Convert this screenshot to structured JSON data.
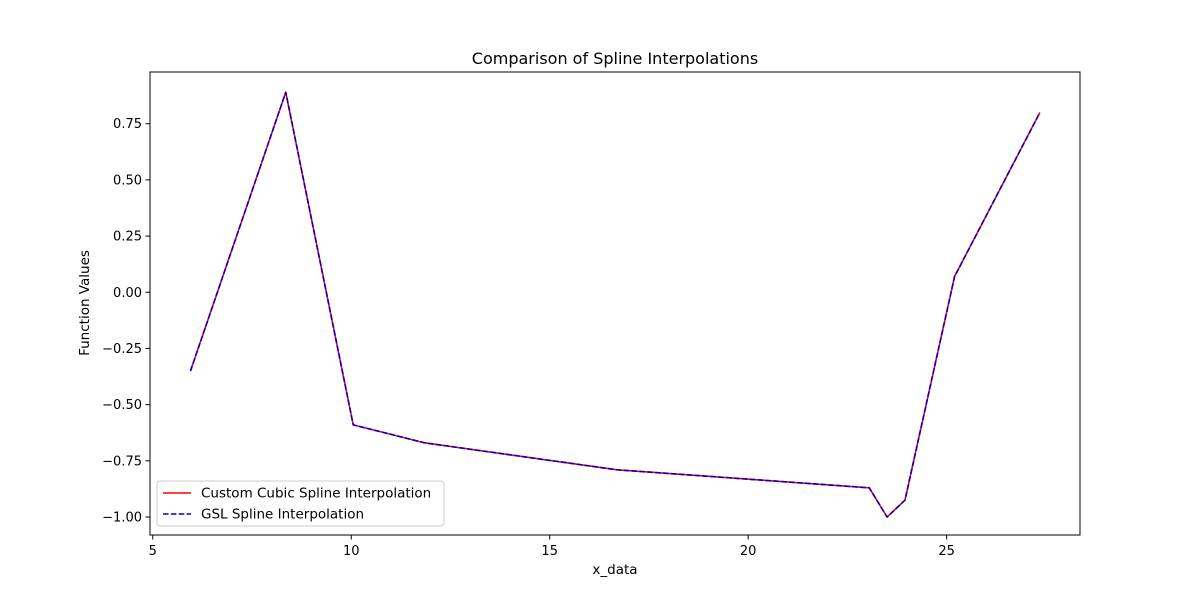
{
  "chart_data": {
    "type": "line",
    "title": "Comparison of Spline Interpolations",
    "xlabel": "x_data",
    "ylabel": "Function Values",
    "xlim": [
      4.93,
      28.36
    ],
    "ylim": [
      -1.08,
      0.98
    ],
    "xticks": [
      5,
      10,
      15,
      20,
      25
    ],
    "yticks": [
      -1.0,
      -0.75,
      -0.5,
      -0.25,
      0.0,
      0.25,
      0.5,
      0.75
    ],
    "grid": false,
    "legend_position": "lower-left",
    "series": [
      {
        "name": "Custom Cubic Spline Interpolation",
        "color": "#ff0000",
        "style": "solid",
        "x": [
          5.95,
          8.35,
          10.05,
          11.85,
          16.7,
          23.05,
          23.5,
          23.95,
          25.2,
          27.35
        ],
        "y": [
          -0.35,
          0.89,
          -0.59,
          -0.67,
          -0.79,
          -0.87,
          -1.0,
          -0.925,
          0.07,
          0.8
        ]
      },
      {
        "name": "GSL Spline Interpolation",
        "color": "#0000cc",
        "style": "dashed",
        "x": [
          5.95,
          8.35,
          10.05,
          11.85,
          16.7,
          23.05,
          23.5,
          23.95,
          25.2,
          27.35
        ],
        "y": [
          -0.35,
          0.89,
          -0.59,
          -0.67,
          -0.79,
          -0.87,
          -1.0,
          -0.925,
          0.07,
          0.8
        ]
      }
    ]
  }
}
